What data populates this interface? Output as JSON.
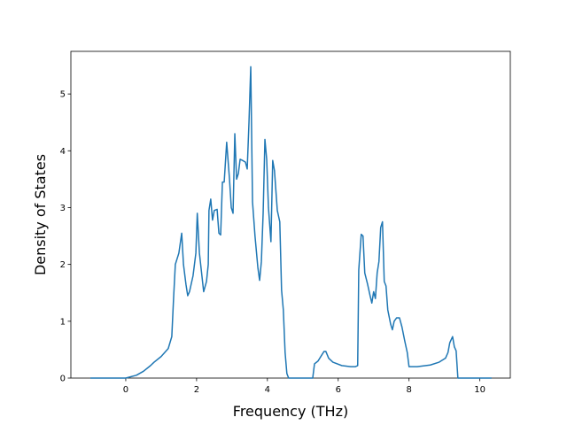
{
  "chart_data": {
    "type": "line",
    "x_label": "Frequency (THz)",
    "y_label": "Density of States",
    "xlim": [
      -1.55,
      10.86
    ],
    "ylim": [
      0,
      5.75
    ],
    "xticks": [
      0,
      2,
      4,
      6,
      8,
      10
    ],
    "yticks": [
      0,
      1,
      2,
      3,
      4,
      5
    ],
    "grid": false,
    "series": [
      {
        "color": "#1f77b4",
        "x": [
          -1.0,
          0.0,
          0.3,
          0.5,
          0.7,
          0.8,
          1.0,
          1.2,
          1.3,
          1.35,
          1.4,
          1.5,
          1.58,
          1.63,
          1.7,
          1.75,
          1.8,
          1.9,
          1.98,
          2.02,
          2.08,
          2.2,
          2.28,
          2.33,
          2.35,
          2.4,
          2.45,
          2.5,
          2.58,
          2.63,
          2.68,
          2.73,
          2.78,
          2.85,
          2.93,
          2.98,
          3.03,
          3.08,
          3.13,
          3.18,
          3.23,
          3.3,
          3.38,
          3.43,
          3.48,
          3.53,
          3.58,
          3.65,
          3.73,
          3.78,
          3.83,
          3.88,
          3.93,
          3.98,
          4.03,
          4.1,
          4.15,
          4.2,
          4.28,
          4.35,
          4.4,
          4.45,
          4.5,
          4.55,
          4.6,
          5.28,
          5.33,
          5.43,
          5.53,
          5.6,
          5.65,
          5.73,
          5.85,
          6.1,
          6.35,
          6.48,
          6.55,
          6.58,
          6.65,
          6.7,
          6.75,
          6.83,
          6.9,
          6.95,
          7.0,
          7.05,
          7.1,
          7.15,
          7.2,
          7.25,
          7.3,
          7.35,
          7.4,
          7.48,
          7.53,
          7.58,
          7.65,
          7.73,
          7.8,
          7.88,
          7.95,
          8.0,
          8.23,
          8.6,
          8.85,
          9.03,
          9.1,
          9.15,
          9.23,
          9.28,
          9.33,
          9.38,
          10.33
        ],
        "values": [
          0,
          0,
          0.05,
          0.12,
          0.22,
          0.28,
          0.38,
          0.52,
          0.73,
          1.4,
          2.0,
          2.2,
          2.55,
          2.0,
          1.65,
          1.45,
          1.52,
          1.8,
          2.2,
          2.9,
          2.2,
          1.52,
          1.7,
          2.0,
          2.95,
          3.15,
          2.78,
          2.95,
          2.97,
          2.55,
          2.52,
          3.45,
          3.45,
          4.15,
          3.5,
          3.0,
          2.9,
          4.3,
          3.5,
          3.6,
          3.85,
          3.83,
          3.8,
          3.68,
          4.5,
          5.48,
          3.1,
          2.5,
          1.95,
          1.72,
          2.05,
          2.9,
          4.2,
          3.85,
          3.0,
          2.4,
          3.83,
          3.65,
          2.95,
          2.75,
          1.55,
          1.2,
          0.45,
          0.08,
          0,
          0,
          0.25,
          0.3,
          0.4,
          0.47,
          0.47,
          0.35,
          0.28,
          0.22,
          0.2,
          0.2,
          0.22,
          1.9,
          2.53,
          2.5,
          1.85,
          1.65,
          1.45,
          1.32,
          1.52,
          1.4,
          1.85,
          2.05,
          2.65,
          2.75,
          1.7,
          1.62,
          1.2,
          0.95,
          0.85,
          1.0,
          1.06,
          1.06,
          0.9,
          0.65,
          0.45,
          0.2,
          0.2,
          0.23,
          0.28,
          0.35,
          0.45,
          0.62,
          0.73,
          0.55,
          0.48,
          0,
          0
        ]
      }
    ]
  }
}
